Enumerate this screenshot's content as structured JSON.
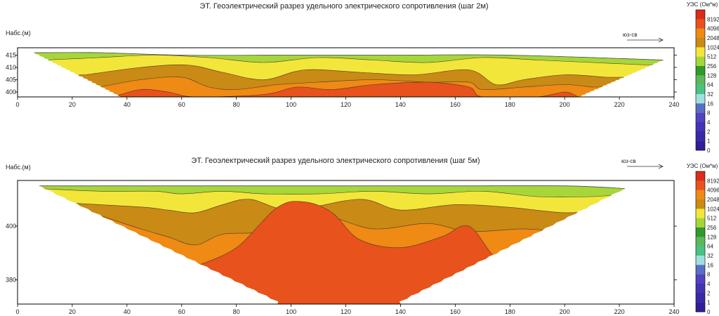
{
  "palette": {
    "band_colors": [
      "#2e1f99",
      "#3a28a8",
      "#4433b4",
      "#5143c0",
      "#5a6fc4",
      "#9fe0e0",
      "#49c286",
      "#5cb85a",
      "#2f9a2a",
      "#a6d63a",
      "#f3e63a",
      "#c98a16",
      "#ef8a14",
      "#e8521c",
      "#dc2a1c"
    ],
    "legend_levels": [
      "8192",
      "4096",
      "2048",
      "1024",
      "512",
      "256",
      "128",
      "64",
      "32",
      "16",
      "8",
      "4",
      "2",
      "1",
      "0"
    ]
  },
  "chart_data": [
    {
      "type": "heatmap",
      "title": "ЭТ. Геоэлектрический разрез удельного электрического сопротивления (шаг 2м)",
      "ylabel": "Набс.(м)",
      "xlabel": "",
      "xlim": [
        0,
        240
      ],
      "ylim": [
        398,
        418
      ],
      "x_ticks": [
        "0",
        "20",
        "40",
        "60",
        "80",
        "100",
        "120",
        "140",
        "160",
        "180",
        "200",
        "220",
        "240"
      ],
      "y_ticks": [
        {
          "v": 400,
          "label": "400"
        },
        {
          "v": 405,
          "label": "405"
        },
        {
          "v": 410,
          "label": "410"
        },
        {
          "v": 415,
          "label": "415"
        }
      ],
      "direction_label": "юз-св",
      "legend_title": "УЭС (Ом*м)",
      "top_elev": 416.5,
      "left_surface": [
        6,
        416
      ],
      "right_surface": [
        236,
        413
      ],
      "left_bottom": [
        38,
        398
      ],
      "right_bottom": [
        205,
        398
      ],
      "levels": [
        {
          "c": 9,
          "top": [
            [
              6,
              416
            ],
            [
              30,
              416
            ],
            [
              60,
              415
            ],
            [
              100,
              415
            ],
            [
              140,
              415
            ],
            [
              180,
              415
            ],
            [
              236,
              413
            ]
          ]
        },
        {
          "c": 10,
          "top": [
            [
              10,
              413
            ],
            [
              30,
              414
            ],
            [
              50,
              415
            ],
            [
              70,
              414
            ],
            [
              90,
              412
            ],
            [
              110,
              414
            ],
            [
              130,
              413
            ],
            [
              150,
              412
            ],
            [
              170,
              414
            ],
            [
              190,
              413
            ],
            [
              210,
              412
            ],
            [
              230,
              411
            ]
          ]
        },
        {
          "c": 11,
          "top": [
            [
              25,
              407
            ],
            [
              45,
              410
            ],
            [
              62,
              411
            ],
            [
              75,
              408
            ],
            [
              90,
              405
            ],
            [
              105,
              409
            ],
            [
              125,
              408
            ],
            [
              145,
              407
            ],
            [
              165,
              409
            ],
            [
              175,
              403
            ],
            [
              185,
              405
            ],
            [
              200,
              407
            ],
            [
              215,
              406
            ]
          ]
        },
        {
          "c": 12,
          "top": [
            [
              30,
              402
            ],
            [
              45,
              405
            ],
            [
              60,
              406
            ],
            [
              70,
              402
            ],
            [
              80,
              401
            ],
            [
              95,
              403
            ],
            [
              110,
              404
            ],
            [
              130,
              405
            ],
            [
              150,
              404
            ],
            [
              165,
              404
            ],
            [
              170,
              401
            ],
            [
              185,
              402
            ],
            [
              200,
              403
            ],
            [
              210,
              402
            ]
          ]
        },
        {
          "c": 13,
          "top": [
            [
              35,
              398
            ],
            [
              45,
              401
            ],
            [
              55,
              400
            ],
            [
              65,
              398
            ],
            [
              90,
              399
            ],
            [
              102,
              402
            ],
            [
              115,
              401
            ],
            [
              130,
              403
            ],
            [
              150,
              404
            ],
            [
              165,
              402
            ],
            [
              170,
              398
            ],
            [
              190,
              398
            ],
            [
              200,
              400
            ],
            [
              205,
              398
            ]
          ]
        }
      ]
    },
    {
      "type": "heatmap",
      "title": "ЭТ. Геоэлектрический разрез удельного электрического сопротивления (шаг 5м)",
      "ylabel": "Набс.(м)",
      "xlabel": "",
      "xlim": [
        0,
        240
      ],
      "ylim": [
        371,
        417
      ],
      "x_ticks": [
        "0",
        "20",
        "40",
        "60",
        "80",
        "100",
        "120",
        "140",
        "160",
        "180",
        "200",
        "220",
        "240"
      ],
      "y_ticks": [
        {
          "v": 380,
          "label": "380"
        },
        {
          "v": 400,
          "label": "400"
        }
      ],
      "direction_label": "юз-св",
      "legend_title": "УЭС (Ом*м)",
      "top_elev": 417,
      "left_surface": [
        8,
        415
      ],
      "right_surface": [
        222,
        414
      ],
      "left_bottom": [
        95,
        372
      ],
      "right_bottom": [
        140,
        372
      ],
      "levels": [
        {
          "c": 9,
          "top": [
            [
              8,
              415
            ],
            [
              40,
              415
            ],
            [
              80,
              415
            ],
            [
              120,
              415
            ],
            [
              160,
              415
            ],
            [
              200,
              415
            ],
            [
              222,
              414
            ]
          ]
        },
        {
          "c": 10,
          "top": [
            [
              8,
              414
            ],
            [
              30,
              413
            ],
            [
              50,
              413
            ],
            [
              60,
              412
            ],
            [
              75,
              413
            ],
            [
              90,
              412
            ],
            [
              110,
              412
            ],
            [
              130,
              413
            ],
            [
              150,
              412
            ],
            [
              170,
              413
            ],
            [
              190,
              411
            ],
            [
              210,
              411
            ],
            [
              222,
              412
            ]
          ]
        },
        {
          "c": 11,
          "top": [
            [
              12,
              409
            ],
            [
              30,
              408
            ],
            [
              47,
              407
            ],
            [
              55,
              406
            ],
            [
              65,
              405
            ],
            [
              75,
              408
            ],
            [
              85,
              410
            ],
            [
              100,
              406
            ],
            [
              125,
              410
            ],
            [
              140,
              406
            ],
            [
              160,
              408
            ],
            [
              180,
              407
            ],
            [
              200,
              405
            ],
            [
              215,
              406
            ]
          ]
        },
        {
          "c": 12,
          "top": [
            [
              30,
              404
            ],
            [
              45,
              399
            ],
            [
              55,
              396
            ],
            [
              65,
              393
            ],
            [
              75,
              397
            ],
            [
              90,
              398
            ],
            [
              110,
              404
            ],
            [
              130,
              399
            ],
            [
              150,
              401
            ],
            [
              165,
              398
            ],
            [
              185,
              399
            ],
            [
              200,
              398
            ],
            [
              210,
              400
            ]
          ]
        },
        {
          "c": 13,
          "top": [
            [
              65,
              385
            ],
            [
              80,
              392
            ],
            [
              95,
              407
            ],
            [
              105,
              409
            ],
            [
              115,
              405
            ],
            [
              125,
              395
            ],
            [
              140,
              392
            ],
            [
              155,
              396
            ],
            [
              165,
              400
            ],
            [
              175,
              388
            ],
            [
              185,
              386
            ]
          ]
        }
      ]
    }
  ]
}
